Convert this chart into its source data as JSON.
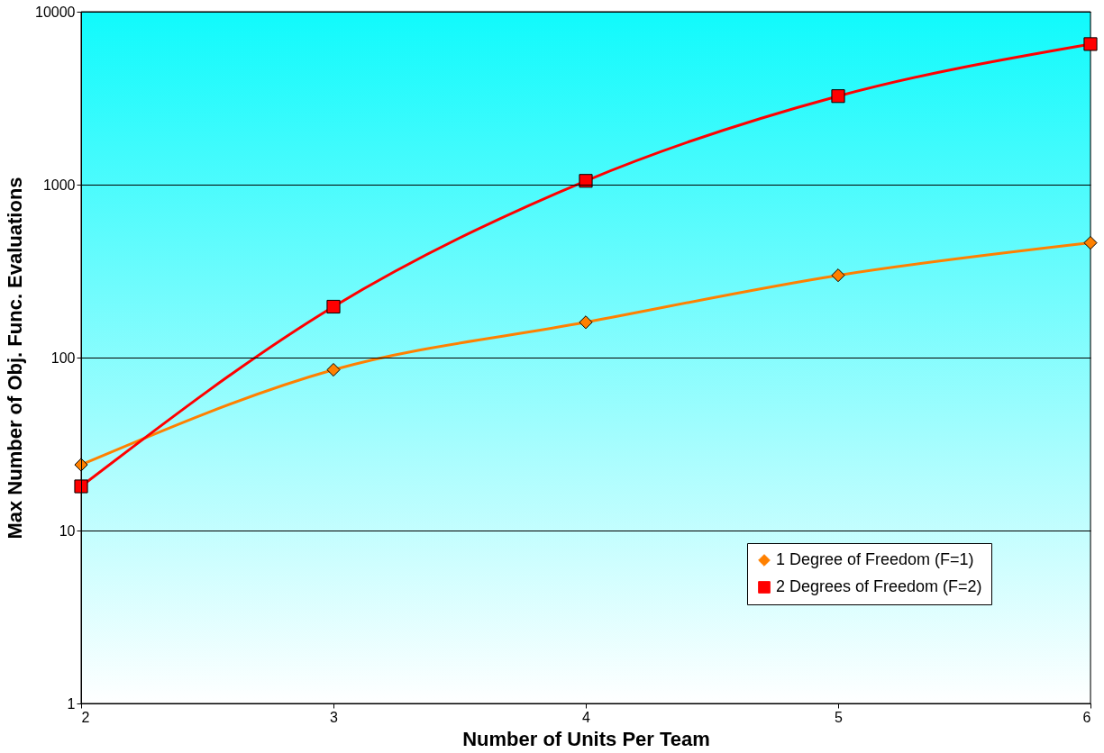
{
  "chart_data": {
    "type": "line",
    "xlabel": "Number of Units Per Team",
    "ylabel": "Max Number of Obj. Func. Evaluations",
    "x": [
      2,
      3,
      4,
      5,
      6
    ],
    "series": [
      {
        "name": "1 Degree of Freedom (F=1)",
        "color": "#ff8000",
        "marker": "diamond",
        "values": [
          24,
          85,
          160,
          299,
          461
        ]
      },
      {
        "name": "2 Degrees of Freedom (F=2)",
        "color": "#ff0000",
        "marker": "square",
        "values": [
          18,
          197,
          1052,
          3250,
          6500
        ]
      }
    ],
    "xlim": [
      2,
      6
    ],
    "xticks": [
      2,
      3,
      4,
      5,
      6
    ],
    "ylim": [
      1,
      10000
    ],
    "yticks": [
      1,
      10,
      100,
      1000,
      10000
    ],
    "log": "y",
    "grid": "y",
    "legend": "bottom right",
    "line_style": "solid"
  }
}
